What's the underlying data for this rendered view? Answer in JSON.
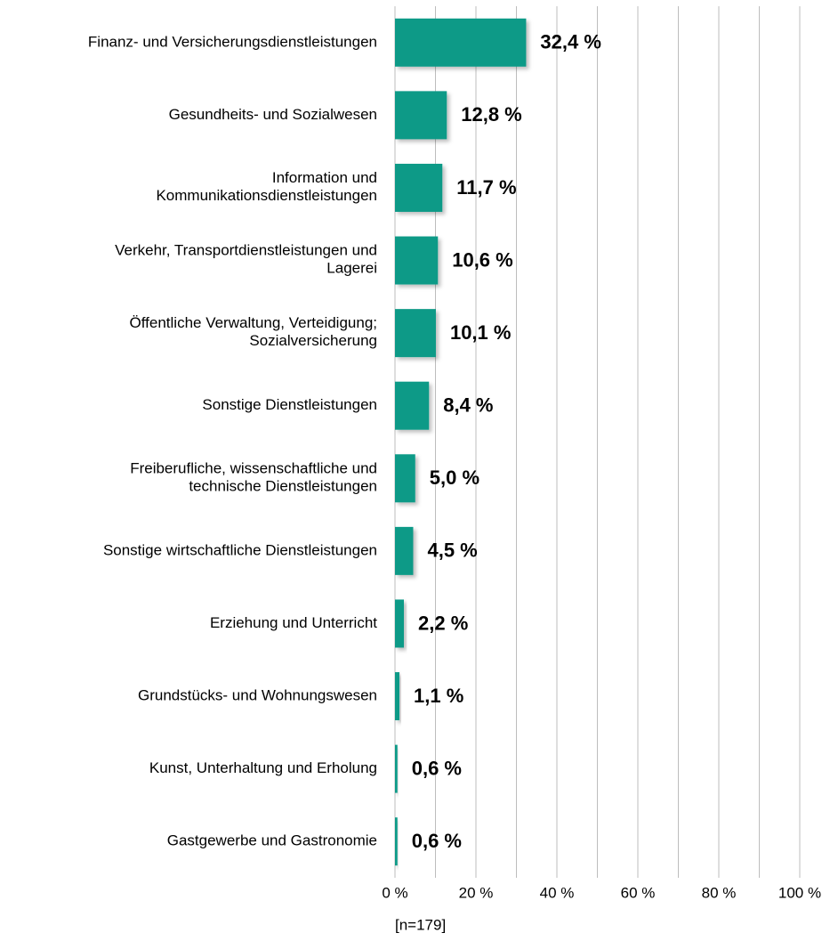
{
  "chart_data": {
    "type": "bar",
    "orientation": "horizontal",
    "categories": [
      "Finanz- und Versicherungsdienstleistungen",
      "Gesundheits- und Sozialwesen",
      "Information und\nKommunikationsdienstleistungen",
      "Verkehr, Transportdienstleistungen und\nLagerei",
      "Öffentliche Verwaltung, Verteidigung;\nSozialversicherung",
      "Sonstige Dienstleistungen",
      "Freiberufliche, wissenschaftliche und\ntechnische Dienstleistungen",
      "Sonstige wirtschaftliche Dienstleistungen",
      "Erziehung und Unterricht",
      "Grundstücks- und Wohnungswesen",
      "Kunst, Unterhaltung und Erholung",
      "Gastgewerbe und Gastronomie"
    ],
    "values": [
      32.4,
      12.8,
      11.7,
      10.6,
      10.1,
      8.4,
      5.0,
      4.5,
      2.2,
      1.1,
      0.6,
      0.6
    ],
    "value_labels": [
      "32,4 %",
      "12,8 %",
      "11,7 %",
      "10,6 %",
      "10,1 %",
      "8,4 %",
      "5,0 %",
      "4,5 %",
      "2,2 %",
      "1,1 %",
      "0,6 %",
      "0,6 %"
    ],
    "color": "#0a9a87",
    "xlim": [
      0,
      100
    ],
    "xticks": [
      {
        "value": 0,
        "label": "0 %"
      },
      {
        "value": 20,
        "label": "20 %"
      },
      {
        "value": 40,
        "label": "40 %"
      },
      {
        "value": 60,
        "label": "60 %"
      },
      {
        "value": 80,
        "label": "80 %"
      },
      {
        "value": 100,
        "label": "100 %"
      }
    ],
    "x_minor_ticks": [
      10,
      30,
      50,
      70,
      90
    ],
    "grid": true,
    "note": "[n=179]"
  }
}
